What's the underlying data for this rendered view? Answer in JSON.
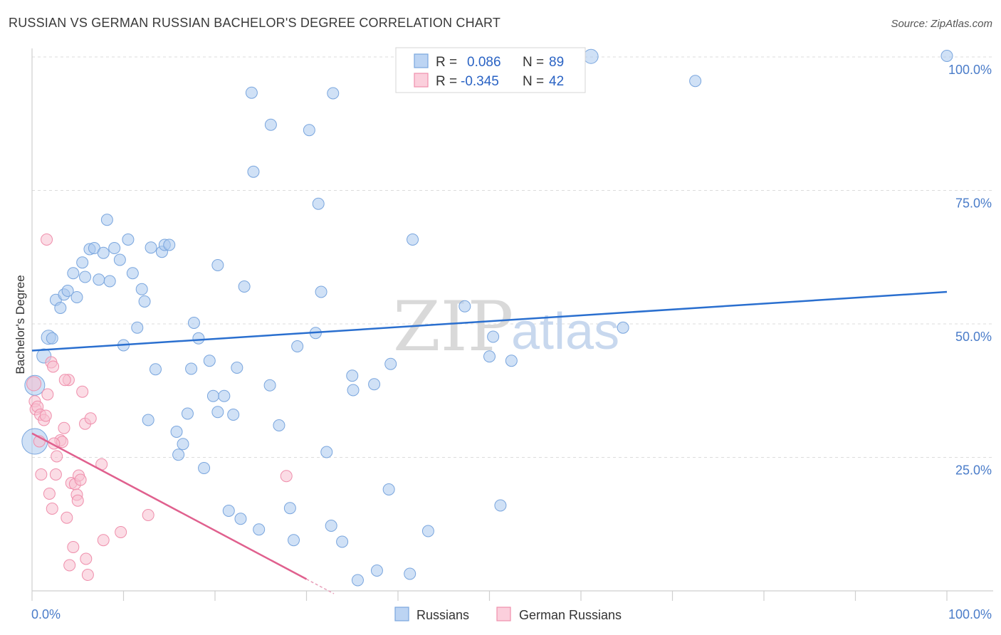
{
  "header": {
    "title": "RUSSIAN VS GERMAN RUSSIAN BACHELOR'S DEGREE CORRELATION CHART",
    "source": "Source: ZipAtlas.com"
  },
  "watermark": {
    "part1": "ZIP",
    "part2": "atlas"
  },
  "chart_data": {
    "type": "scatter",
    "ylabel": "Bachelor's Degree",
    "xlim": [
      0,
      100
    ],
    "ylim": [
      0,
      100
    ],
    "x_tick_labels": [
      "0.0%",
      "100.0%"
    ],
    "y_ticks": [
      25,
      50,
      75,
      100
    ],
    "y_tick_labels": [
      "25.0%",
      "50.0%",
      "75.0%",
      "100.0%"
    ],
    "grid": true,
    "legend": {
      "r_label": "R =",
      "n_label": "N =",
      "entries": [
        {
          "r": "0.086",
          "n": "89"
        },
        {
          "r": "-0.345",
          "n": "42"
        }
      ]
    },
    "series": [
      {
        "name": "Russians",
        "color": "#a9c8ef",
        "stroke": "#7aa6de",
        "line_color": "#2a6fcf",
        "trend": {
          "x": [
            0,
            100
          ],
          "y": [
            45.0,
            56.0
          ]
        },
        "points": [
          [
            0.3,
            28,
            18
          ],
          [
            0.3,
            38.5,
            14
          ],
          [
            1.3,
            44,
            10
          ],
          [
            1.8,
            47.5,
            10
          ],
          [
            2.2,
            47.3,
            8
          ],
          [
            2.6,
            54.5,
            8
          ],
          [
            3.1,
            53,
            8
          ],
          [
            3.5,
            55.5,
            8
          ],
          [
            3.9,
            56.2,
            8
          ],
          [
            4.5,
            59.5,
            8
          ],
          [
            4.9,
            55,
            8
          ],
          [
            5.5,
            61.5,
            8
          ],
          [
            5.8,
            58.8,
            8
          ],
          [
            6.3,
            64,
            8
          ],
          [
            6.8,
            64.2,
            8
          ],
          [
            7.3,
            58.3,
            8
          ],
          [
            7.8,
            63.3,
            8
          ],
          [
            8.2,
            69.5,
            8
          ],
          [
            8.5,
            58,
            8
          ],
          [
            9.0,
            64.2,
            8
          ],
          [
            9.6,
            62,
            8
          ],
          [
            10.0,
            46,
            8
          ],
          [
            10.5,
            65.8,
            8
          ],
          [
            11.0,
            59.5,
            8
          ],
          [
            11.5,
            49.3,
            8
          ],
          [
            12.0,
            56.5,
            8
          ],
          [
            12.3,
            54.2,
            8
          ],
          [
            12.7,
            32,
            8
          ],
          [
            13.0,
            64.3,
            8
          ],
          [
            13.5,
            41.5,
            8
          ],
          [
            14.2,
            63.5,
            8
          ],
          [
            14.5,
            64.8,
            8
          ],
          [
            15.0,
            64.8,
            8
          ],
          [
            15.8,
            29.8,
            8
          ],
          [
            16.0,
            25.5,
            8
          ],
          [
            16.5,
            27.5,
            8
          ],
          [
            17.0,
            33.2,
            8
          ],
          [
            17.4,
            41.6,
            8
          ],
          [
            17.7,
            50.2,
            8
          ],
          [
            18.2,
            47.3,
            8
          ],
          [
            18.8,
            23,
            8
          ],
          [
            19.4,
            43.1,
            8
          ],
          [
            19.8,
            36.5,
            8
          ],
          [
            20.3,
            61,
            8
          ],
          [
            20.3,
            33.5,
            8
          ],
          [
            21.0,
            36.5,
            8
          ],
          [
            21.5,
            15,
            8
          ],
          [
            22.0,
            33,
            8
          ],
          [
            22.4,
            41.8,
            8
          ],
          [
            22.8,
            13.5,
            8
          ],
          [
            23.2,
            57,
            8
          ],
          [
            24.0,
            93.3,
            8
          ],
          [
            24.2,
            78.5,
            8
          ],
          [
            24.8,
            11.5,
            8
          ],
          [
            26.0,
            38.5,
            8
          ],
          [
            26.1,
            87.3,
            8
          ],
          [
            27.0,
            31,
            8
          ],
          [
            28.2,
            15.5,
            8
          ],
          [
            28.6,
            9.5,
            8
          ],
          [
            29.0,
            45.8,
            8
          ],
          [
            30.3,
            86.3,
            8
          ],
          [
            31.0,
            48.3,
            8
          ],
          [
            31.3,
            72.5,
            8
          ],
          [
            31.6,
            56,
            8
          ],
          [
            32.2,
            26,
            8
          ],
          [
            32.7,
            12.2,
            8
          ],
          [
            32.9,
            93.2,
            8
          ],
          [
            33.9,
            9.2,
            8
          ],
          [
            35.0,
            40.3,
            8
          ],
          [
            35.1,
            37.6,
            8
          ],
          [
            35.6,
            2,
            8
          ],
          [
            37.4,
            38.7,
            8
          ],
          [
            37.7,
            3.8,
            8
          ],
          [
            39.0,
            19,
            8
          ],
          [
            39.2,
            42.5,
            8
          ],
          [
            41.3,
            3.2,
            8
          ],
          [
            41.6,
            65.8,
            8
          ],
          [
            43.3,
            11.2,
            8
          ],
          [
            47.3,
            53.3,
            8
          ],
          [
            50.0,
            43.9,
            8
          ],
          [
            50.4,
            47.6,
            8
          ],
          [
            51.2,
            16,
            8
          ],
          [
            52.4,
            43.1,
            8
          ],
          [
            59.4,
            100.2,
            10
          ],
          [
            61.1,
            100.1,
            10
          ],
          [
            64.6,
            49.3,
            8
          ],
          [
            72.5,
            95.5,
            8
          ],
          [
            100,
            100.2,
            8
          ]
        ]
      },
      {
        "name": "German Russians",
        "color": "#f8c0d0",
        "stroke": "#ef8fac",
        "line_color": "#e0608e",
        "trend": {
          "x": [
            0,
            30
          ],
          "y": [
            29.5,
            2.2
          ]
        },
        "points": [
          [
            0.2,
            38.8,
            10
          ],
          [
            0.3,
            35.5,
            8
          ],
          [
            0.4,
            34,
            8
          ],
          [
            0.6,
            34.5,
            8
          ],
          [
            0.8,
            28,
            8
          ],
          [
            0.9,
            33,
            8
          ],
          [
            1.0,
            21.8,
            8
          ],
          [
            1.3,
            32,
            8
          ],
          [
            1.5,
            32.8,
            8
          ],
          [
            1.6,
            65.8,
            8
          ],
          [
            1.7,
            36.8,
            8
          ],
          [
            1.9,
            18.2,
            8
          ],
          [
            2.1,
            42.8,
            8
          ],
          [
            2.2,
            15.4,
            8
          ],
          [
            2.3,
            42,
            8
          ],
          [
            2.6,
            21.8,
            8
          ],
          [
            2.7,
            25.2,
            8
          ],
          [
            3.1,
            28.2,
            8
          ],
          [
            3.3,
            27.9,
            8
          ],
          [
            3.5,
            30.5,
            8
          ],
          [
            3.8,
            13.7,
            8
          ],
          [
            4.0,
            39.5,
            8
          ],
          [
            4.1,
            4.8,
            8
          ],
          [
            4.3,
            20.2,
            8
          ],
          [
            4.5,
            8.2,
            8
          ],
          [
            4.7,
            20,
            8
          ],
          [
            4.9,
            18,
            8
          ],
          [
            5.0,
            16.9,
            8
          ],
          [
            5.1,
            21.6,
            8
          ],
          [
            5.3,
            20.8,
            8
          ],
          [
            5.5,
            37.3,
            8
          ],
          [
            5.8,
            31.3,
            8
          ],
          [
            6.1,
            3,
            8
          ],
          [
            6.4,
            32.3,
            8
          ],
          [
            7.6,
            23.7,
            8
          ],
          [
            7.8,
            9.5,
            8
          ],
          [
            9.7,
            11,
            8
          ],
          [
            12.7,
            14.2,
            8
          ],
          [
            27.8,
            21.5,
            8
          ],
          [
            5.9,
            6,
            8
          ],
          [
            3.6,
            39.5,
            8
          ],
          [
            2.4,
            27.6,
            8
          ]
        ]
      }
    ]
  },
  "bottom_legend": [
    "Russians",
    "German Russians"
  ]
}
